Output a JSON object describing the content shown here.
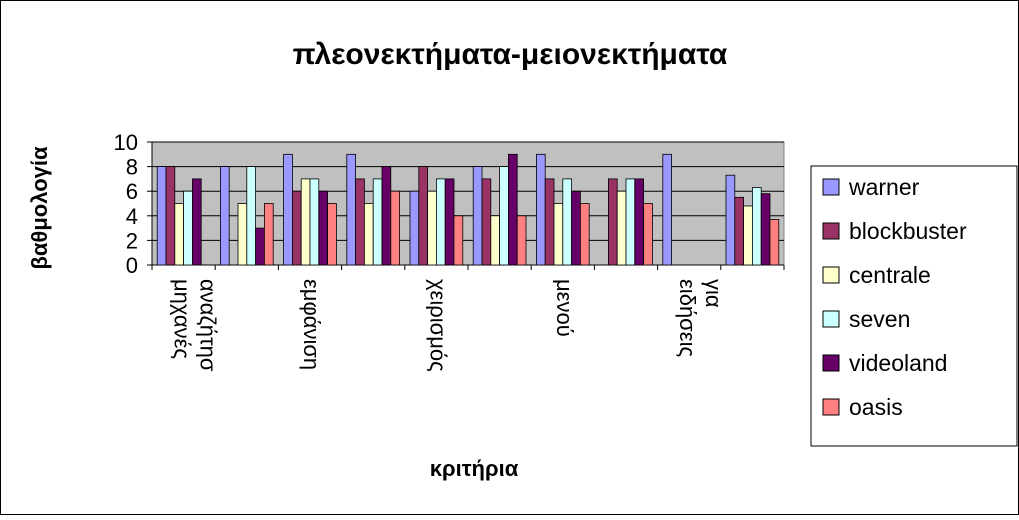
{
  "chart_data": {
    "type": "bar",
    "title": "πλεονεκτήματα-μειονεκτήματα",
    "xlabel": "κριτήρια",
    "ylabel": "βαθμολογία",
    "ylim": [
      0,
      10
    ],
    "yticks": [
      0,
      2,
      4,
      6,
      8,
      10
    ],
    "grid": true,
    "legend_position": "right",
    "categories": [
      "μηχανές αναζήτησ",
      "",
      "εμφάνιση",
      "",
      "χειρισμός",
      "",
      "μενού",
      "",
      "ειδήσεις",
      "για"
    ],
    "category_labels_drawn": [
      [
        "μηχανές",
        "αναζήτησ"
      ],
      [],
      [
        "εμφάνιση"
      ],
      [],
      [
        "χειρισμός"
      ],
      [],
      [
        "μενού"
      ],
      [],
      [
        "ειδήσεις",
        "για"
      ],
      []
    ],
    "series": [
      {
        "name": "warner",
        "color": "#9999FF",
        "values": [
          8,
          8,
          9,
          9,
          6,
          8,
          9,
          0,
          9,
          7.3
        ]
      },
      {
        "name": "blockbuster",
        "color": "#993366",
        "values": [
          8,
          0,
          6,
          7,
          8,
          7,
          7,
          7,
          0,
          5.5
        ]
      },
      {
        "name": "centrale",
        "color": "#FFFFCC",
        "values": [
          5,
          5,
          7,
          5,
          6,
          4,
          5,
          6,
          0,
          4.8
        ]
      },
      {
        "name": "seven",
        "color": "#CCFFFF",
        "values": [
          6,
          8,
          7,
          7,
          7,
          8,
          7,
          7,
          0,
          6.3
        ]
      },
      {
        "name": "videoland",
        "color": "#660066",
        "values": [
          7,
          3,
          6,
          8,
          7,
          9,
          6,
          7,
          0,
          5.8
        ]
      },
      {
        "name": "oasis",
        "color": "#FF8080",
        "values": [
          0,
          5,
          5,
          6,
          4,
          4,
          5,
          5,
          0,
          3.7
        ]
      }
    ],
    "plot_background": "#C0C0C0"
  }
}
